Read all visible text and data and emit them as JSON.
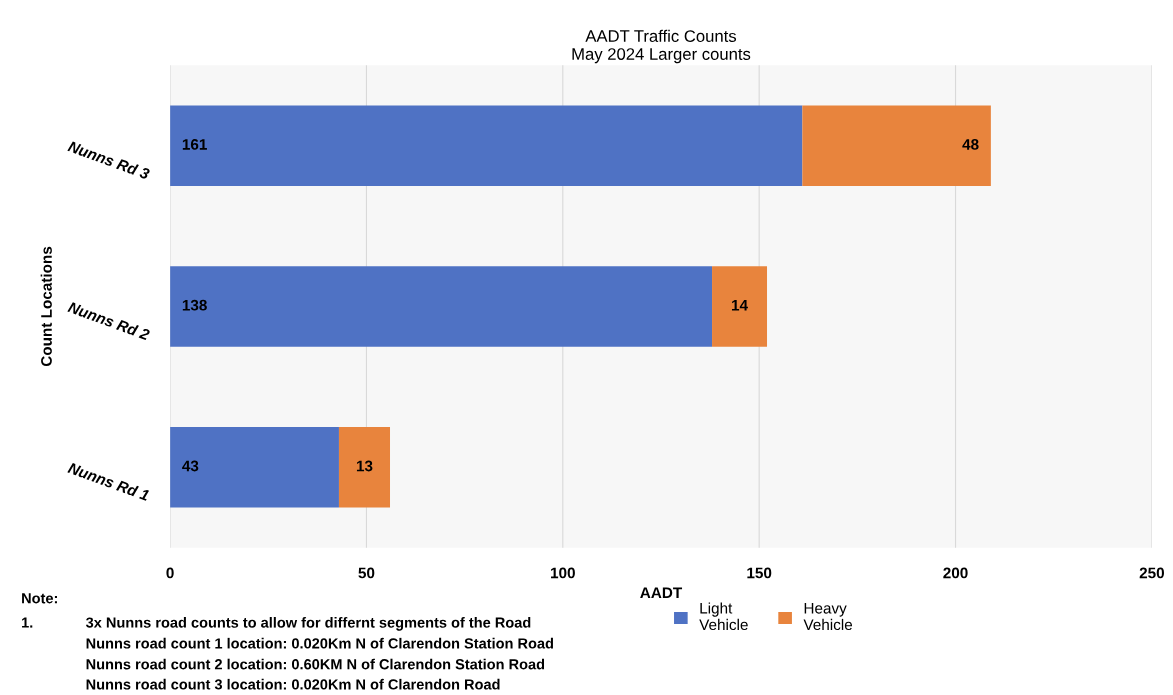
{
  "chart_data": {
    "type": "bar",
    "orientation": "horizontal",
    "stacked": true,
    "title": "AADT Traffic Counts\nMay 2024 Larger counts",
    "xlabel": "AADT",
    "ylabel": "Count Locations",
    "categories": [
      "Nunns Rd 3",
      "Nunns Rd 2",
      "Nunns Rd 1"
    ],
    "series": [
      {
        "name": "Light Vehicle",
        "color": "#4f72c4",
        "values": [
          161,
          138,
          43
        ]
      },
      {
        "name": "Heavy Vehicle",
        "color": "#e8843d",
        "values": [
          48,
          14,
          13
        ]
      }
    ],
    "xlim": [
      0,
      250
    ],
    "xticks": [
      0,
      50,
      100,
      150,
      200,
      250
    ],
    "grid": "x",
    "legend": "bottom right",
    "data_labels": true,
    "annotations": [
      "Note:",
      "1.",
      "3x Nunns road counts to allow for differnt segments of the Road",
      "Nunns road count 1 location: 0.020Km N of Clarendon Station Road",
      "Nunns road count 2 location: 0.60KM N of Clarendon Station Road",
      "Nunns road count 3 location: 0.020Km N of Clarendon Road"
    ]
  }
}
